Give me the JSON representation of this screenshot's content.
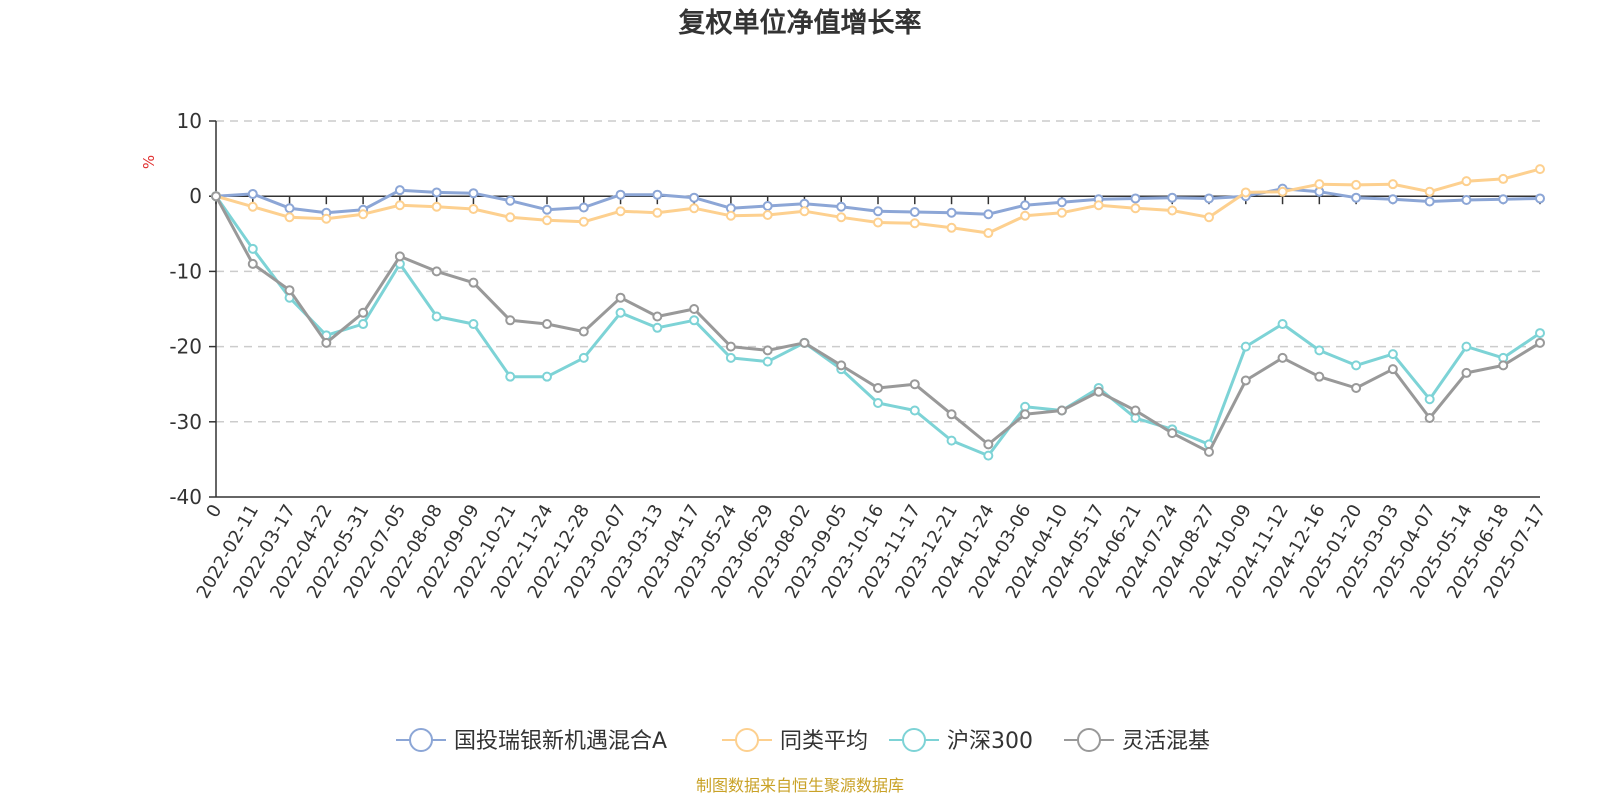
{
  "chart_data": {
    "type": "line",
    "title": "复权单位净值增长率",
    "ylabel": "%",
    "ylim": [
      -40,
      10
    ],
    "yticks": [
      10,
      0,
      -10,
      -20,
      -30,
      -40
    ],
    "grid": true,
    "legend_position": "bottom",
    "source": "制图数据来自恒生聚源数据库",
    "categories": [
      "0",
      "2022-02-11",
      "2022-03-17",
      "2022-04-22",
      "2022-05-31",
      "2022-07-05",
      "2022-08-08",
      "2022-09-09",
      "2022-10-21",
      "2022-11-24",
      "2022-12-28",
      "2023-02-07",
      "2023-03-13",
      "2023-04-17",
      "2023-05-24",
      "2023-06-29",
      "2023-08-02",
      "2023-09-05",
      "2023-10-16",
      "2023-11-17",
      "2023-12-21",
      "2024-01-24",
      "2024-03-06",
      "2024-04-10",
      "2024-05-17",
      "2024-06-21",
      "2024-07-24",
      "2024-08-27",
      "2024-10-09",
      "2024-11-12",
      "2024-12-16",
      "2025-01-20",
      "2025-03-03",
      "2025-04-07",
      "2025-05-14",
      "2025-06-18",
      "2025-07-17"
    ],
    "series": [
      {
        "name": "国投瑞银新机遇混合A",
        "color": "#8ca6d6",
        "values": [
          0,
          0.3,
          -1.6,
          -2.2,
          -1.8,
          0.8,
          0.5,
          0.4,
          -0.6,
          -1.8,
          -1.5,
          0.2,
          0.2,
          -0.2,
          -1.6,
          -1.3,
          -1.0,
          -1.4,
          -2.0,
          -2.1,
          -2.2,
          -2.4,
          -1.2,
          -0.8,
          -0.4,
          -0.3,
          -0.2,
          -0.3,
          0.0,
          1.0,
          0.6,
          -0.2,
          -0.4,
          -0.7,
          -0.5,
          -0.4,
          -0.3
        ]
      },
      {
        "name": "同类平均",
        "color": "#fdd08f",
        "values": [
          0,
          -1.4,
          -2.8,
          -3.0,
          -2.4,
          -1.2,
          -1.4,
          -1.7,
          -2.8,
          -3.2,
          -3.4,
          -2.0,
          -2.2,
          -1.6,
          -2.6,
          -2.5,
          -2.0,
          -2.8,
          -3.5,
          -3.6,
          -4.2,
          -4.9,
          -2.6,
          -2.2,
          -1.2,
          -1.6,
          -1.9,
          -2.8,
          0.5,
          0.6,
          1.6,
          1.5,
          1.6,
          0.6,
          2.0,
          2.3,
          3.6
        ]
      },
      {
        "name": "沪深300",
        "color": "#7dd3d6",
        "values": [
          0,
          -7.0,
          -13.5,
          -18.5,
          -17.0,
          -9.0,
          -16.0,
          -17.0,
          -24.0,
          -24.0,
          -21.5,
          -15.5,
          -17.5,
          -16.5,
          -21.5,
          -22.0,
          -19.5,
          -23.0,
          -27.5,
          -28.5,
          -32.5,
          -34.5,
          -28.0,
          -28.5,
          -25.5,
          -29.5,
          -31.0,
          -33.0,
          -20.0,
          -17.0,
          -20.5,
          -22.5,
          -21.0,
          -27.0,
          -20.0,
          -21.5,
          -18.2
        ]
      },
      {
        "name": "灵活混基",
        "color": "#999999",
        "values": [
          0,
          -9.0,
          -12.5,
          -19.5,
          -15.5,
          -8.0,
          -10.0,
          -11.5,
          -16.5,
          -17.0,
          -18.0,
          -13.5,
          -16.0,
          -15.0,
          -20.0,
          -20.5,
          -19.5,
          -22.5,
          -25.5,
          -25.0,
          -29.0,
          -33.0,
          -29.0,
          -28.5,
          -26.0,
          -28.5,
          -31.5,
          -34.0,
          -24.5,
          -21.5,
          -24.0,
          -25.5,
          -23.0,
          -29.5,
          -23.5,
          -22.5,
          -19.5
        ]
      }
    ]
  }
}
